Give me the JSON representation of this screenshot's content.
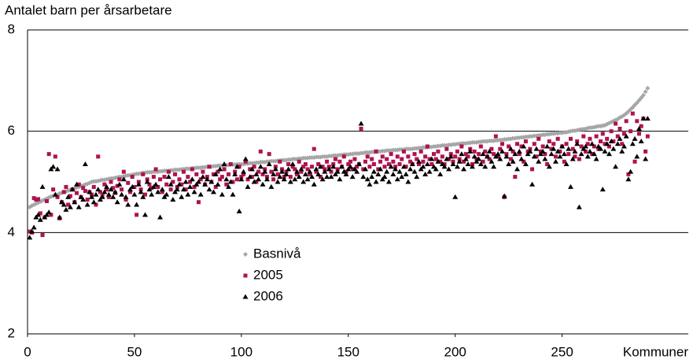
{
  "chart_data": {
    "type": "scatter",
    "title": "Antalet barn per årsarbetare",
    "x_label": "Kommuner",
    "xlim": [
      0,
      309
    ],
    "xticks": [
      0,
      50,
      100,
      150,
      200,
      250
    ],
    "ylim": [
      2,
      8
    ],
    "yticks": [
      2,
      4,
      6,
      8
    ],
    "grid": true,
    "legend": "lower center",
    "x": [
      1,
      2,
      3,
      4,
      5,
      6,
      7,
      8,
      9,
      10,
      11,
      12,
      13,
      14,
      15,
      16,
      17,
      18,
      19,
      20,
      21,
      22,
      23,
      24,
      25,
      26,
      27,
      28,
      29,
      30,
      31,
      32,
      33,
      34,
      35,
      36,
      37,
      38,
      39,
      40,
      41,
      42,
      43,
      44,
      45,
      46,
      47,
      48,
      49,
      50,
      51,
      52,
      53,
      54,
      55,
      56,
      57,
      58,
      59,
      60,
      61,
      62,
      63,
      64,
      65,
      66,
      67,
      68,
      69,
      70,
      71,
      72,
      73,
      74,
      75,
      76,
      77,
      78,
      79,
      80,
      81,
      82,
      83,
      84,
      85,
      86,
      87,
      88,
      89,
      90,
      91,
      92,
      93,
      94,
      95,
      96,
      97,
      98,
      99,
      100,
      101,
      102,
      103,
      104,
      105,
      106,
      107,
      108,
      109,
      110,
      111,
      112,
      113,
      114,
      115,
      116,
      117,
      118,
      119,
      120,
      121,
      122,
      123,
      124,
      125,
      126,
      127,
      128,
      129,
      130,
      131,
      132,
      133,
      134,
      135,
      136,
      137,
      138,
      139,
      140,
      141,
      142,
      143,
      144,
      145,
      146,
      147,
      148,
      149,
      150,
      151,
      152,
      153,
      154,
      155,
      156,
      157,
      158,
      159,
      160,
      161,
      162,
      163,
      164,
      165,
      166,
      167,
      168,
      169,
      170,
      171,
      172,
      173,
      174,
      175,
      176,
      177,
      178,
      179,
      180,
      181,
      182,
      183,
      184,
      185,
      186,
      187,
      188,
      189,
      190,
      191,
      192,
      193,
      194,
      195,
      196,
      197,
      198,
      199,
      200,
      201,
      202,
      203,
      204,
      205,
      206,
      207,
      208,
      209,
      210,
      211,
      212,
      213,
      214,
      215,
      216,
      217,
      218,
      219,
      220,
      221,
      222,
      223,
      224,
      225,
      226,
      227,
      228,
      229,
      230,
      231,
      232,
      233,
      234,
      235,
      236,
      237,
      238,
      239,
      240,
      241,
      242,
      243,
      244,
      245,
      246,
      247,
      248,
      249,
      250,
      251,
      252,
      253,
      254,
      255,
      256,
      257,
      258,
      259,
      260,
      261,
      262,
      263,
      264,
      265,
      266,
      267,
      268,
      269,
      270,
      271,
      272,
      273,
      274,
      275,
      276,
      277,
      278,
      279,
      280,
      281,
      282,
      283,
      284,
      285,
      286,
      287,
      288,
      289,
      290
    ],
    "series": [
      {
        "name": "Basnivå",
        "color": "#a6a6a6",
        "marker": "diamond",
        "values": [
          4.5,
          4.53,
          4.55,
          4.57,
          4.59,
          4.61,
          4.63,
          4.65,
          4.67,
          4.69,
          4.71,
          4.72,
          4.74,
          4.75,
          4.77,
          4.78,
          4.8,
          4.81,
          4.83,
          4.84,
          4.86,
          4.87,
          4.89,
          4.9,
          4.92,
          4.93,
          4.95,
          4.96,
          4.98,
          5.0,
          5.01,
          5.01,
          5.02,
          5.03,
          5.04,
          5.04,
          5.05,
          5.06,
          5.07,
          5.07,
          5.08,
          5.09,
          5.1,
          5.1,
          5.11,
          5.12,
          5.13,
          5.13,
          5.14,
          5.15,
          5.16,
          5.16,
          5.17,
          5.18,
          5.18,
          5.19,
          5.19,
          5.19,
          5.2,
          5.2,
          5.2,
          5.21,
          5.21,
          5.22,
          5.22,
          5.22,
          5.23,
          5.23,
          5.24,
          5.24,
          5.24,
          5.25,
          5.25,
          5.26,
          5.26,
          5.26,
          5.27,
          5.27,
          5.28,
          5.28,
          5.28,
          5.29,
          5.29,
          5.3,
          5.3,
          5.3,
          5.31,
          5.31,
          5.32,
          5.32,
          5.32,
          5.33,
          5.33,
          5.33,
          5.34,
          5.34,
          5.34,
          5.35,
          5.35,
          5.35,
          5.35,
          5.36,
          5.36,
          5.37,
          5.37,
          5.37,
          5.38,
          5.38,
          5.39,
          5.39,
          5.39,
          5.4,
          5.4,
          5.41,
          5.41,
          5.41,
          5.42,
          5.42,
          5.43,
          5.43,
          5.43,
          5.44,
          5.44,
          5.45,
          5.45,
          5.45,
          5.46,
          5.46,
          5.47,
          5.47,
          5.47,
          5.48,
          5.48,
          5.48,
          5.49,
          5.49,
          5.49,
          5.5,
          5.5,
          5.5,
          5.51,
          5.51,
          5.52,
          5.52,
          5.52,
          5.53,
          5.53,
          5.54,
          5.54,
          5.54,
          5.55,
          5.55,
          5.56,
          5.56,
          5.56,
          5.57,
          5.57,
          5.58,
          5.58,
          5.58,
          5.59,
          5.59,
          5.6,
          5.6,
          5.6,
          5.61,
          5.61,
          5.62,
          5.62,
          5.62,
          5.63,
          5.63,
          5.63,
          5.64,
          5.64,
          5.64,
          5.65,
          5.65,
          5.65,
          5.65,
          5.66,
          5.66,
          5.67,
          5.67,
          5.68,
          5.68,
          5.68,
          5.69,
          5.69,
          5.7,
          5.7,
          5.71,
          5.71,
          5.72,
          5.72,
          5.72,
          5.73,
          5.73,
          5.74,
          5.74,
          5.75,
          5.75,
          5.76,
          5.76,
          5.76,
          5.77,
          5.77,
          5.78,
          5.78,
          5.78,
          5.79,
          5.79,
          5.8,
          5.8,
          5.8,
          5.81,
          5.81,
          5.81,
          5.82,
          5.82,
          5.83,
          5.83,
          5.84,
          5.84,
          5.85,
          5.85,
          5.86,
          5.86,
          5.87,
          5.87,
          5.88,
          5.88,
          5.89,
          5.89,
          5.9,
          5.9,
          5.91,
          5.91,
          5.92,
          5.92,
          5.93,
          5.93,
          5.94,
          5.94,
          5.95,
          5.95,
          5.96,
          5.96,
          5.97,
          5.97,
          5.98,
          5.98,
          5.99,
          6.0,
          6.01,
          6.01,
          6.02,
          6.03,
          6.04,
          6.04,
          6.05,
          6.06,
          6.07,
          6.07,
          6.08,
          6.09,
          6.1,
          6.1,
          6.11,
          6.12,
          6.14,
          6.16,
          6.18,
          6.2,
          6.22,
          6.24,
          6.27,
          6.29,
          6.32,
          6.35,
          6.39,
          6.43,
          6.47,
          6.52,
          6.56,
          6.61,
          6.66,
          6.71,
          6.78,
          6.85
        ]
      },
      {
        "name": "2005",
        "color": "#b0124f",
        "marker": "square",
        "values": [
          4.02,
          4.0,
          4.68,
          4.65,
          4.66,
          4.38,
          3.95,
          4.3,
          4.62,
          5.55,
          4.35,
          4.85,
          5.5,
          4.7,
          4.28,
          4.6,
          4.8,
          4.9,
          4.55,
          4.72,
          4.85,
          4.6,
          4.78,
          4.95,
          4.7,
          4.88,
          4.82,
          4.65,
          4.8,
          4.75,
          4.9,
          4.55,
          5.5,
          4.8,
          4.72,
          4.95,
          4.85,
          4.7,
          5.0,
          4.88,
          4.78,
          4.92,
          5.05,
          4.85,
          5.2,
          4.65,
          4.98,
          4.8,
          5.1,
          4.9,
          4.35,
          5.0,
          4.85,
          5.15,
          4.75,
          5.05,
          4.95,
          4.88,
          5.1,
          5.25,
          4.9,
          5.05,
          4.8,
          5.1,
          4.95,
          5.2,
          4.85,
          5.0,
          5.15,
          4.9,
          5.05,
          4.95,
          5.2,
          4.85,
          5.1,
          5.0,
          5.25,
          4.9,
          5.15,
          4.6,
          5.05,
          5.2,
          4.95,
          5.1,
          5.3,
          5.0,
          5.15,
          4.9,
          5.2,
          5.05,
          5.1,
          5.25,
          4.95,
          5.15,
          5.35,
          5.0,
          5.2,
          5.05,
          5.3,
          5.1,
          5.15,
          5.4,
          5.05,
          5.25,
          5.1,
          5.3,
          5.0,
          5.2,
          5.6,
          5.15,
          5.25,
          5.1,
          5.55,
          5.2,
          5.05,
          5.3,
          5.15,
          5.4,
          5.25,
          5.1,
          5.2,
          5.35,
          5.1,
          5.3,
          5.25,
          5.15,
          5.4,
          5.2,
          5.3,
          5.35,
          5.25,
          5.15,
          5.3,
          5.65,
          5.2,
          5.35,
          5.1,
          5.3,
          5.25,
          5.4,
          5.3,
          5.2,
          5.35,
          5.45,
          5.25,
          5.4,
          5.3,
          5.5,
          5.2,
          5.35,
          5.4,
          5.25,
          5.45,
          5.3,
          5.35,
          6.05,
          5.25,
          5.4,
          5.5,
          5.3,
          5.45,
          5.35,
          5.6,
          5.25,
          5.4,
          5.5,
          5.3,
          5.45,
          5.35,
          5.55,
          5.4,
          5.3,
          5.5,
          5.35,
          5.45,
          5.6,
          5.3,
          5.5,
          5.4,
          5.35,
          5.55,
          5.45,
          5.35,
          5.6,
          5.4,
          5.5,
          5.7,
          5.45,
          5.35,
          5.55,
          5.45,
          5.6,
          5.4,
          5.5,
          5.35,
          5.65,
          5.45,
          5.55,
          5.4,
          5.5,
          5.6,
          5.45,
          5.7,
          5.4,
          5.55,
          5.5,
          5.65,
          5.35,
          5.6,
          5.45,
          5.55,
          5.7,
          5.4,
          5.6,
          5.5,
          5.45,
          5.65,
          5.55,
          5.9,
          5.5,
          5.65,
          5.75,
          4.7,
          5.55,
          5.7,
          5.45,
          5.6,
          5.1,
          5.75,
          5.55,
          5.7,
          5.4,
          5.8,
          5.6,
          5.65,
          5.25,
          5.75,
          5.5,
          5.85,
          5.6,
          5.7,
          5.55,
          5.35,
          5.8,
          5.65,
          5.75,
          5.5,
          5.85,
          5.6,
          5.7,
          5.4,
          5.75,
          5.55,
          5.85,
          5.65,
          5.5,
          5.8,
          5.45,
          5.7,
          5.9,
          5.6,
          5.75,
          5.85,
          5.55,
          5.7,
          5.9,
          5.65,
          5.8,
          5.95,
          5.75,
          5.85,
          5.7,
          6.0,
          5.8,
          6.15,
          5.9,
          6.05,
          5.75,
          5.95,
          6.2,
          5.15,
          6.0,
          6.35,
          5.4,
          6.2,
          5.95,
          6.1,
          6.25,
          5.6,
          5.9
        ]
      },
      {
        "name": "2006",
        "color": "#000000",
        "marker": "triangle",
        "values": [
          3.9,
          4.02,
          4.1,
          4.3,
          4.35,
          4.25,
          4.9,
          4.3,
          4.35,
          4.4,
          5.25,
          5.3,
          4.75,
          5.25,
          4.3,
          4.6,
          4.55,
          4.45,
          4.7,
          4.5,
          4.85,
          4.6,
          4.95,
          4.5,
          4.7,
          4.65,
          5.35,
          4.55,
          4.8,
          4.7,
          4.6,
          4.75,
          4.85,
          4.65,
          4.7,
          4.8,
          4.9,
          4.75,
          4.85,
          4.7,
          4.8,
          4.6,
          4.95,
          4.75,
          5.05,
          4.7,
          4.55,
          4.85,
          4.9,
          4.75,
          4.55,
          4.95,
          4.8,
          4.7,
          4.35,
          5.0,
          4.85,
          4.75,
          4.9,
          4.95,
          4.8,
          4.3,
          4.85,
          4.7,
          4.75,
          5.1,
          4.95,
          4.65,
          4.8,
          4.85,
          4.95,
          4.7,
          4.85,
          5.0,
          4.75,
          4.9,
          5.05,
          4.8,
          4.95,
          5.0,
          4.75,
          5.1,
          4.95,
          5.05,
          4.85,
          5.0,
          4.8,
          5.15,
          4.95,
          5.25,
          4.75,
          5.35,
          5.05,
          4.9,
          5.0,
          4.75,
          5.15,
          5.3,
          4.42,
          5.05,
          5.2,
          5.45,
          4.9,
          5.1,
          5.25,
          5.0,
          5.15,
          5.05,
          5.3,
          4.95,
          5.2,
          5.05,
          5.35,
          4.9,
          5.15,
          5.25,
          5.0,
          5.1,
          5.2,
          5.05,
          5.15,
          5.25,
          5.0,
          5.35,
          5.05,
          5.2,
          5.1,
          5.25,
          5.0,
          5.15,
          5.05,
          5.2,
          5.1,
          4.95,
          5.25,
          5.15,
          5.3,
          5.05,
          5.2,
          5.1,
          5.25,
          5.1,
          5.3,
          5.15,
          5.2,
          5.05,
          5.3,
          5.2,
          5.15,
          5.25,
          5.3,
          5.1,
          5.25,
          5.2,
          5.35,
          6.15,
          5.1,
          5.25,
          5.05,
          4.95,
          5.1,
          5.2,
          5.0,
          5.15,
          5.25,
          5.05,
          5.1,
          5.2,
          5.0,
          5.3,
          5.15,
          5.25,
          5.05,
          5.2,
          5.1,
          5.3,
          5.15,
          5.0,
          5.25,
          5.35,
          5.2,
          5.1,
          5.4,
          5.25,
          5.3,
          5.15,
          5.35,
          5.2,
          5.45,
          5.3,
          5.25,
          5.4,
          5.15,
          5.35,
          5.3,
          5.45,
          5.25,
          5.5,
          5.35,
          4.7,
          5.3,
          5.4,
          5.55,
          5.25,
          5.45,
          5.35,
          5.6,
          5.3,
          5.5,
          5.4,
          5.45,
          5.35,
          5.55,
          5.3,
          5.5,
          5.6,
          5.4,
          5.3,
          5.5,
          5.55,
          5.45,
          5.6,
          4.72,
          5.5,
          5.35,
          5.65,
          5.4,
          5.55,
          5.25,
          5.6,
          5.45,
          5.7,
          5.35,
          5.55,
          5.6,
          4.95,
          5.5,
          5.65,
          5.4,
          5.55,
          5.6,
          5.45,
          5.7,
          5.3,
          5.55,
          5.65,
          5.4,
          5.6,
          5.5,
          5.7,
          5.55,
          5.35,
          5.65,
          4.9,
          5.45,
          5.6,
          5.75,
          4.5,
          5.55,
          5.65,
          5.7,
          5.5,
          5.6,
          5.75,
          5.55,
          5.45,
          5.7,
          5.65,
          4.85,
          5.6,
          5.75,
          5.55,
          5.8,
          5.65,
          5.3,
          5.75,
          5.85,
          5.6,
          5.7,
          5.9,
          5.05,
          5.2,
          5.75,
          5.85,
          5.5,
          6.05,
          5.8,
          6.25,
          5.45,
          6.25
        ]
      }
    ]
  }
}
